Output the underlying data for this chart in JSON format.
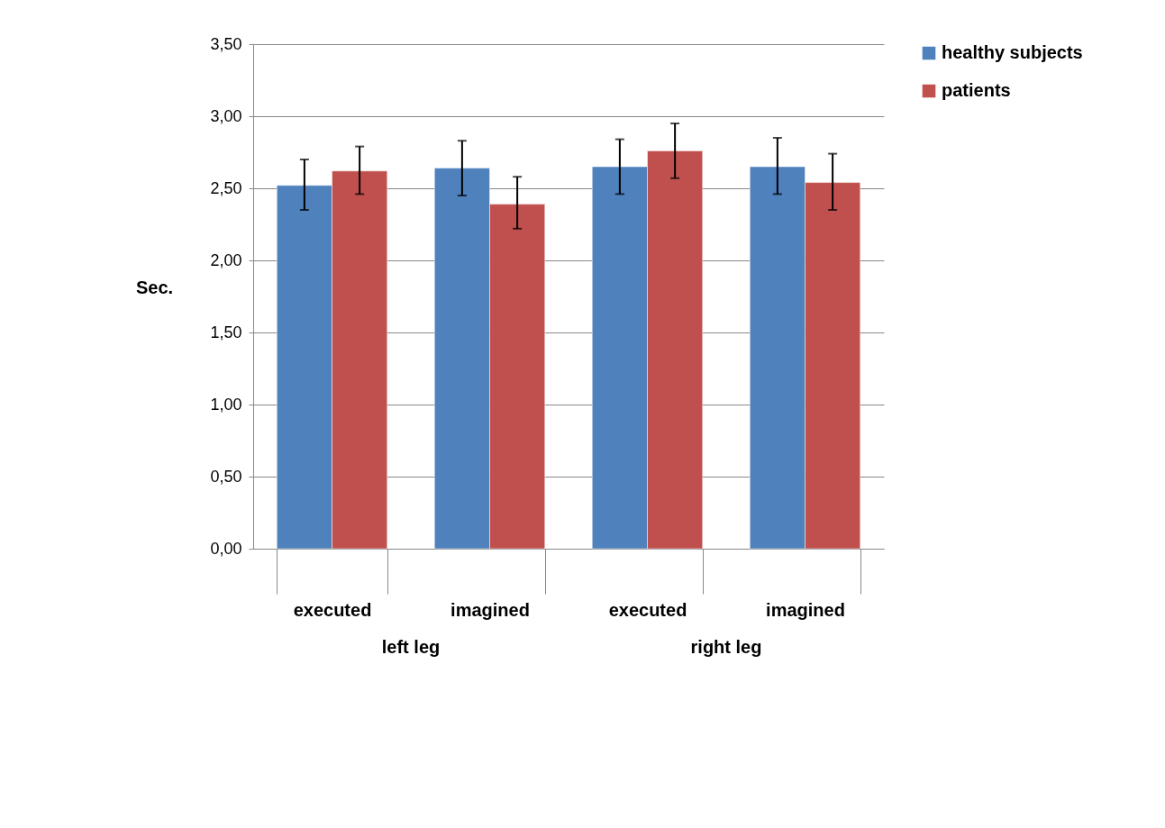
{
  "chart_data": {
    "type": "bar",
    "ylabel": "Sec.",
    "categories": [
      "executed",
      "imagined",
      "executed",
      "imagined"
    ],
    "annotations": [
      "left leg",
      "right leg"
    ],
    "series": [
      {
        "name": "healthy subjects",
        "color": "#4f81bd",
        "values": [
          2.52,
          2.64,
          2.65,
          2.65
        ],
        "errors": [
          [
            2.35,
            2.7
          ],
          [
            2.45,
            2.83
          ],
          [
            2.46,
            2.84
          ],
          [
            2.46,
            2.85
          ]
        ]
      },
      {
        "name": "patients",
        "color": "#c0504d",
        "values": [
          2.62,
          2.39,
          2.76,
          2.54
        ],
        "errors": [
          [
            2.46,
            2.79
          ],
          [
            2.22,
            2.58
          ],
          [
            2.57,
            2.95
          ],
          [
            2.35,
            2.74
          ]
        ]
      }
    ],
    "ylim": [
      0,
      3.5
    ],
    "yticks": [
      {
        "value": 0,
        "label": "0,00"
      },
      {
        "value": 0.5,
        "label": "0,50"
      },
      {
        "value": 1,
        "label": "1,00"
      },
      {
        "value": 1.5,
        "label": "1,50"
      },
      {
        "value": 2,
        "label": "2,00"
      },
      {
        "value": 2.5,
        "label": "2,50"
      },
      {
        "value": 3,
        "label": "3,00"
      },
      {
        "value": 3.5,
        "label": "3,50"
      }
    ],
    "grid": "y",
    "legend": "right"
  }
}
